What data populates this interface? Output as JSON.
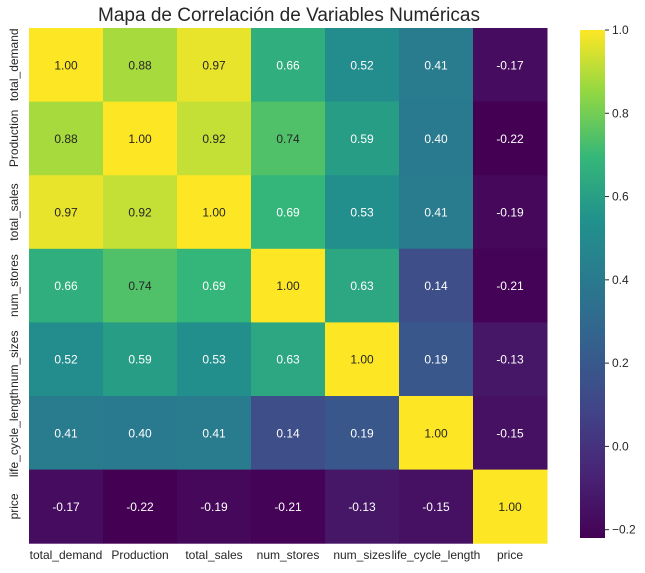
{
  "chart_data": {
    "type": "heatmap",
    "title": "Mapa de Correlación de Variables Numéricas",
    "variables": [
      "total_demand",
      "Production",
      "total_sales",
      "num_stores",
      "num_sizes",
      "life_cycle_length",
      "price"
    ],
    "matrix": [
      [
        1.0,
        0.88,
        0.97,
        0.66,
        0.52,
        0.41,
        -0.17
      ],
      [
        0.88,
        1.0,
        0.92,
        0.74,
        0.59,
        0.4,
        -0.22
      ],
      [
        0.97,
        0.92,
        1.0,
        0.69,
        0.53,
        0.41,
        -0.19
      ],
      [
        0.66,
        0.74,
        0.69,
        1.0,
        0.63,
        0.14,
        -0.21
      ],
      [
        0.52,
        0.59,
        0.53,
        0.63,
        1.0,
        0.19,
        -0.13
      ],
      [
        0.41,
        0.4,
        0.41,
        0.14,
        0.19,
        1.0,
        -0.15
      ],
      [
        -0.17,
        -0.22,
        -0.19,
        -0.21,
        -0.13,
        -0.15,
        1.0
      ]
    ],
    "colormap": "viridis",
    "color_range": [
      -0.22,
      1.0
    ],
    "colorbar_ticks": [
      -0.2,
      0.0,
      0.2,
      0.4,
      0.6,
      0.8,
      1.0
    ],
    "colorbar_tick_labels": [
      "−0.2",
      "0.0",
      "0.2",
      "0.4",
      "0.6",
      "0.8",
      "1.0"
    ],
    "annotation_format": "2 decimals"
  }
}
